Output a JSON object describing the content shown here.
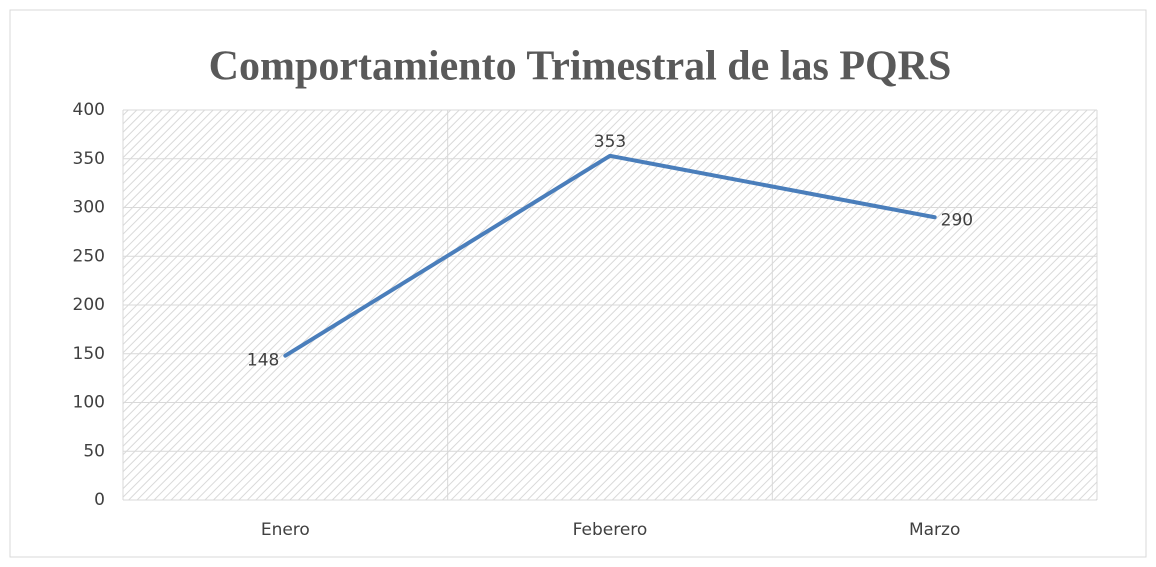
{
  "chart_data": {
    "type": "line",
    "title": "Comportamiento Trimestral de las PQRS",
    "categories": [
      "Enero",
      "Feberero",
      "Marzo"
    ],
    "values": [
      148,
      353,
      290
    ],
    "color": "#4a7ebb",
    "ylim": [
      0,
      400
    ],
    "yticks": [
      0,
      50,
      100,
      150,
      200,
      250,
      300,
      350,
      400
    ],
    "grid": true
  }
}
